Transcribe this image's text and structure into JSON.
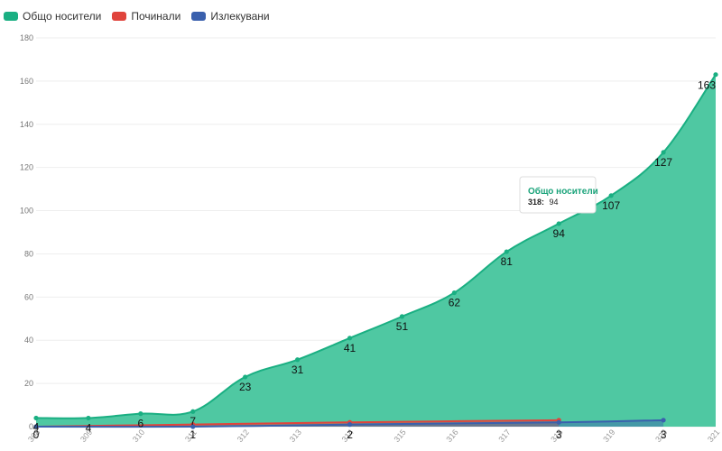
{
  "chart_data": {
    "type": "area",
    "x": [
      308,
      309,
      310,
      311,
      312,
      313,
      314,
      315,
      316,
      317,
      318,
      319,
      320,
      321
    ],
    "ylim": [
      0,
      180
    ],
    "yticks": [
      0,
      20,
      40,
      60,
      80,
      100,
      120,
      140,
      160,
      180
    ],
    "grid": true,
    "legend_position": "top-left",
    "series": [
      {
        "name": "Общо носители",
        "color": "#1aaf82",
        "fill": "#4fc8a2",
        "values": [
          4,
          4,
          6,
          7,
          23,
          31,
          41,
          51,
          62,
          81,
          94,
          107,
          127,
          163
        ],
        "labels": [
          "4",
          "4",
          "6",
          "7",
          "23",
          "31",
          "41",
          "51",
          "62",
          "81",
          "94",
          "107",
          "127",
          "163"
        ]
      },
      {
        "name": "Починали",
        "color": "#e0443c",
        "values": [
          0,
          null,
          null,
          1,
          null,
          null,
          2,
          null,
          null,
          null,
          3,
          null,
          null,
          null
        ],
        "labels": [
          "0",
          "",
          "",
          "1",
          "",
          "",
          "2",
          "",
          "",
          "",
          "3",
          "",
          "",
          ""
        ]
      },
      {
        "name": "Излекувани",
        "color": "#3a60ad",
        "values": [
          0,
          null,
          null,
          0,
          null,
          null,
          1,
          null,
          null,
          null,
          2,
          null,
          3,
          null
        ],
        "labels": [
          "",
          "",
          "",
          "",
          "",
          "",
          "",
          "",
          "",
          "",
          "",
          "",
          "3",
          ""
        ]
      }
    ],
    "tooltip": {
      "title": "Общо носители",
      "x": "318:",
      "value": "94"
    }
  }
}
